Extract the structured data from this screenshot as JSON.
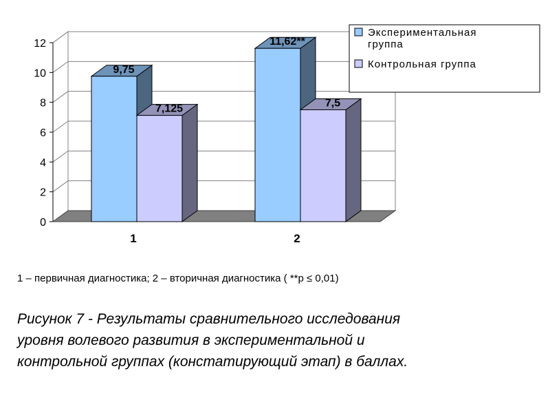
{
  "chart_data": {
    "type": "bar",
    "categories": [
      "1",
      "2"
    ],
    "series": [
      {
        "name": "Экспериментальная группа",
        "values": [
          9.75,
          11.62
        ],
        "labels": [
          "9,75",
          "11,62**"
        ],
        "color": "#99ccff"
      },
      {
        "name": "Контрольная группа",
        "values": [
          7.125,
          7.5
        ],
        "labels": [
          "7,125",
          "7,5"
        ],
        "color": "#ccccff"
      }
    ],
    "legend_lines": [
      [
        "Экспериментальная",
        "группа"
      ],
      [
        "Контрольная группа"
      ]
    ],
    "y_ticks": [
      "0",
      "2",
      "4",
      "6",
      "8",
      "10",
      "12"
    ],
    "ylim": [
      0,
      12
    ],
    "grid": true,
    "legend_position": "top-right",
    "style": "3d-clustered-column"
  },
  "note": "1 – первичная диагностика; 2 – вторичная диагностика ( **р ≤ 0,01)",
  "caption_lines": [
    "Рисунок 7 - Результаты сравнительного исследования",
    "уровня волевого развития в экспериментальной и",
    "контрольной группах (констатирующий этап) в баллах."
  ]
}
